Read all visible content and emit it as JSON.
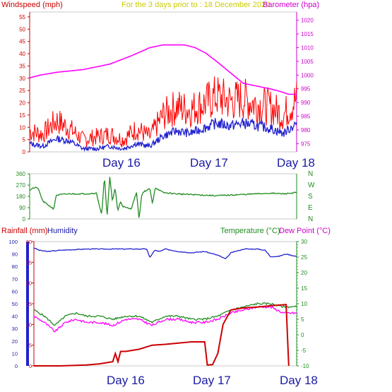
{
  "header": {
    "left_title": "Windspeed (mph)",
    "center_title": "For the 3 days prior to : 18 December 2020",
    "right_title": "Barometer (hpa)"
  },
  "day_labels": [
    "Day 16",
    "Day 17",
    "Day 18"
  ],
  "bottom_header": {
    "rainfall": "Rainfall (mm)",
    "humidity": "Humidity",
    "temperature": "Temperature (°C)",
    "dewpoint": "Dew Point (°C)"
  },
  "colors": {
    "wind_avg": "#2020d0",
    "wind_gust": "#ff0000",
    "barometer": "#ff00ff",
    "direction": "#228b22",
    "humidity": "#2020d0",
    "temperature": "#228b22",
    "dewpoint": "#ff00ff",
    "rainfall": "#cc0000",
    "day_label": "#1a1aa6",
    "left_axis_text": "#cc0000",
    "right_axis_text": "#cc00cc"
  },
  "chart_data": [
    {
      "type": "line",
      "title": "For the 3 days prior to : 18 December 2020",
      "x_labels": [
        "Day 16",
        "Day 17",
        "Day 18"
      ],
      "y_left": {
        "label": "Windspeed (mph)",
        "ylim": [
          0,
          57
        ],
        "ticks": [
          0,
          5,
          10,
          15,
          20,
          25,
          30,
          35,
          40,
          45,
          50,
          55
        ]
      },
      "y_right": {
        "label": "Barometer (hpa)",
        "ylim": [
          972,
          1023
        ],
        "ticks": [
          975,
          980,
          985,
          990,
          995,
          1000,
          1005,
          1010,
          1015,
          1020
        ]
      },
      "series": [
        {
          "name": "Barometer (hpa)",
          "axis": "right",
          "x": [
            0,
            0.04,
            0.1,
            0.2,
            0.3,
            0.38,
            0.45,
            0.5,
            0.54,
            0.58,
            0.62,
            0.66,
            0.7,
            0.75,
            0.8,
            0.85,
            0.9,
            0.94,
            0.97,
            1.0
          ],
          "values": [
            999,
            1000,
            1001,
            1002,
            1004,
            1007,
            1010,
            1011,
            1011,
            1011,
            1010,
            1008,
            1005,
            1001,
            997,
            996,
            995,
            994,
            993,
            993
          ]
        },
        {
          "name": "Wind Gust",
          "axis": "left",
          "x": [
            0,
            0.05,
            0.1,
            0.15,
            0.2,
            0.25,
            0.3,
            0.35,
            0.4,
            0.45,
            0.5,
            0.55,
            0.6,
            0.65,
            0.7,
            0.75,
            0.8,
            0.85,
            0.9,
            0.95,
            1.0
          ],
          "values": [
            7,
            6,
            11,
            8,
            4,
            5,
            6,
            4,
            8,
            5,
            13,
            16,
            15,
            17,
            20,
            18,
            19,
            17,
            16,
            13,
            19
          ]
        },
        {
          "name": "Wind Average",
          "axis": "left",
          "x": [
            0,
            0.05,
            0.1,
            0.15,
            0.2,
            0.25,
            0.3,
            0.35,
            0.4,
            0.45,
            0.5,
            0.55,
            0.6,
            0.65,
            0.7,
            0.75,
            0.8,
            0.85,
            0.9,
            0.95,
            1.0
          ],
          "values": [
            3,
            2,
            5,
            4,
            1,
            1,
            2,
            1,
            3,
            2,
            6,
            8,
            7,
            9,
            11,
            10,
            11,
            10,
            9,
            7,
            11
          ]
        }
      ]
    },
    {
      "type": "line",
      "title": "",
      "y_left": {
        "ticks": [
          0,
          90,
          180,
          270,
          360
        ],
        "ylim": [
          0,
          360
        ]
      },
      "y_right_labels": [
        "N",
        "W",
        "S",
        "E",
        "N"
      ],
      "series": [
        {
          "name": "Wind Direction",
          "x": [
            0,
            0.01,
            0.03,
            0.05,
            0.07,
            0.09,
            0.1,
            0.12,
            0.15,
            0.2,
            0.25,
            0.27,
            0.28,
            0.29,
            0.3,
            0.31,
            0.32,
            0.33,
            0.34,
            0.35,
            0.36,
            0.38,
            0.4,
            0.41,
            0.42,
            0.43,
            0.45,
            0.46,
            0.47,
            0.5,
            0.55,
            0.6,
            0.65,
            0.7,
            0.75,
            0.8,
            0.85,
            0.9,
            0.95,
            1.0
          ],
          "values": [
            230,
            245,
            250,
            140,
            110,
            80,
            190,
            195,
            200,
            200,
            205,
            30,
            340,
            20,
            330,
            140,
            250,
            60,
            140,
            100,
            90,
            80,
            210,
            0,
            200,
            220,
            240,
            120,
            250,
            210,
            200,
            195,
            190,
            185,
            190,
            195,
            200,
            205,
            200,
            210
          ]
        }
      ]
    },
    {
      "type": "line",
      "title": "",
      "y_rain": {
        "label": "Rainfall (mm)",
        "ylim": [
          0,
          30
        ],
        "ticks": [
          0,
          5,
          10,
          15,
          20,
          25,
          30
        ]
      },
      "y_humidity": {
        "label": "Humidity",
        "ylim": [
          0,
          100
        ],
        "ticks": [
          0,
          10,
          20,
          30,
          40,
          50,
          60,
          70,
          80,
          90,
          100
        ]
      },
      "y_temp": {
        "label": "Temperature (°C)",
        "ylim": [
          -10,
          30
        ],
        "ticks": [
          -10,
          -5,
          0,
          5,
          10,
          15,
          20,
          25,
          30
        ]
      },
      "series": [
        {
          "name": "Humidity",
          "axis": "humidity",
          "x": [
            0,
            0.02,
            0.05,
            0.1,
            0.2,
            0.3,
            0.35,
            0.43,
            0.44,
            0.46,
            0.48,
            0.5,
            0.55,
            0.6,
            0.65,
            0.7,
            0.73,
            0.75,
            0.8,
            0.85,
            0.88,
            0.9,
            0.93,
            0.96,
            1.0
          ],
          "values": [
            95,
            93,
            92,
            93,
            94,
            94,
            94,
            94,
            87,
            93,
            92,
            94,
            92,
            91,
            92,
            89,
            86,
            91,
            94,
            94,
            93,
            88,
            88,
            90,
            88
          ]
        },
        {
          "name": "Temperature (°C)",
          "axis": "temp",
          "x": [
            0,
            0.04,
            0.08,
            0.12,
            0.16,
            0.2,
            0.25,
            0.3,
            0.35,
            0.4,
            0.45,
            0.5,
            0.55,
            0.6,
            0.65,
            0.7,
            0.75,
            0.8,
            0.85,
            0.9,
            0.95,
            1.0
          ],
          "values": [
            8,
            6,
            3,
            6,
            7,
            6,
            6,
            5,
            6,
            6,
            4,
            6,
            6,
            5,
            5,
            6,
            8,
            9,
            10,
            10,
            9,
            9
          ]
        },
        {
          "name": "Dew Point (°C)",
          "axis": "temp",
          "x": [
            0,
            0.04,
            0.08,
            0.12,
            0.16,
            0.2,
            0.25,
            0.3,
            0.35,
            0.4,
            0.45,
            0.5,
            0.55,
            0.6,
            0.65,
            0.7,
            0.75,
            0.8,
            0.85,
            0.9,
            0.95,
            1.0
          ],
          "values": [
            6,
            4,
            1,
            4,
            5,
            4,
            4,
            3,
            5,
            5,
            3,
            5,
            5,
            4,
            4,
            5,
            7,
            8,
            9,
            9,
            7,
            7
          ]
        },
        {
          "name": "Rainfall (mm)",
          "axis": "rain",
          "x": [
            0,
            0.1,
            0.2,
            0.25,
            0.3,
            0.31,
            0.32,
            0.33,
            0.35,
            0.4,
            0.45,
            0.5,
            0.55,
            0.6,
            0.65,
            0.66,
            0.68,
            0.7,
            0.72,
            0.75,
            0.8,
            0.85,
            0.9,
            0.94,
            0.96,
            0.97
          ],
          "values": [
            0,
            0,
            0.2,
            0.5,
            1.0,
            3.0,
            1.0,
            3.5,
            3.5,
            4.0,
            5.0,
            5.2,
            5.5,
            5.8,
            5.8,
            0.2,
            0.3,
            3.0,
            10.0,
            13.5,
            14.0,
            14.2,
            14.5,
            14.7,
            14.8,
            0
          ]
        }
      ]
    }
  ]
}
